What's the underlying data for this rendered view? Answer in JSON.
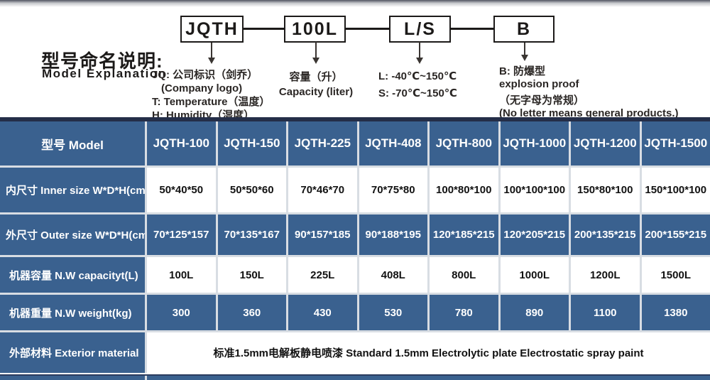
{
  "colors": {
    "table_blue": "#3a618f",
    "table_dark_border": "#242e48",
    "grid_gap": "#d8dde3",
    "diagram_ink": "#1c1a19"
  },
  "diagram": {
    "title_cn": "型号命名说明:",
    "title_en": "Model Explanation",
    "boxes": [
      {
        "label": "JQTH",
        "lines": [
          "JQ: 公司标识（剑乔）",
          "(Company logo)",
          "T: Temperature（温度）",
          "H: Humidity（湿度）"
        ]
      },
      {
        "label": "100L",
        "lines": [
          "容量（升）",
          "Capacity (liter)"
        ]
      },
      {
        "label": "L/S",
        "lines": [
          "L: -40℃~150℃",
          "S: -70℃~150℃"
        ]
      },
      {
        "label": "B",
        "lines": [
          "B: 防爆型",
          "explosion proof",
          "（无字母为常规）",
          "(No letter means general products.)"
        ]
      }
    ]
  },
  "table": {
    "header": [
      "型号 Model",
      "JQTH-100",
      "JQTH-150",
      "JQTH-225",
      "JQTH-408",
      "JQTH-800",
      "JQTH-1000",
      "JQTH-1200",
      "JQTH-1500"
    ],
    "rows": [
      {
        "label": "内尺寸 Inner size W*D*H(cm)",
        "cells": [
          "50*40*50",
          "50*50*60",
          "70*46*70",
          "70*75*80",
          "100*80*100",
          "100*100*100",
          "150*80*100",
          "150*100*100"
        ]
      },
      {
        "label": "外尺寸 Outer size W*D*H(cm)",
        "cells": [
          "70*125*157",
          "70*135*167",
          "90*157*185",
          "90*188*195",
          "120*185*215",
          "120*205*215",
          "200*135*215",
          "200*155*215"
        ]
      },
      {
        "label": "机器容量 N.W capacityt(L)",
        "cells": [
          "100L",
          "150L",
          "225L",
          "408L",
          "800L",
          "1000L",
          "1200L",
          "1500L"
        ]
      },
      {
        "label": "机器重量 N.W weight(kg)",
        "cells": [
          "300",
          "360",
          "430",
          "530",
          "780",
          "890",
          "1100",
          "1380"
        ]
      },
      {
        "label": "外部材料 Exterior material",
        "span": "标准1.5mm电解板静电喷漆  Standard 1.5mm Electrolytic plate Electrostatic spray paint"
      }
    ]
  }
}
